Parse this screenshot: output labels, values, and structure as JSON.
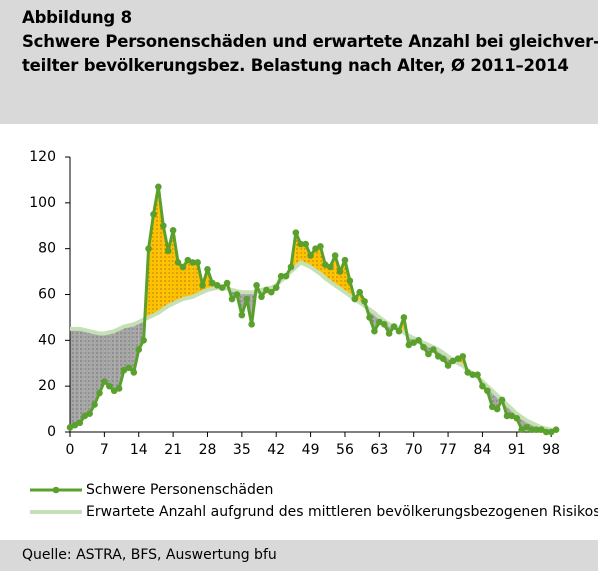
{
  "chart_data": {
    "type": "line",
    "figure_label": "Abbildung 8",
    "title": [
      "Schwere Personenschäden und erwartete Anzahl bei gleichver-",
      "teilter bevölkerungsbez. Belastung nach Alter, Ø 2011–2014"
    ],
    "source": "Quelle: ASTRA, BFS, Auswertung bfu",
    "x": [
      0,
      1,
      2,
      3,
      4,
      5,
      6,
      7,
      8,
      9,
      10,
      11,
      12,
      13,
      14,
      15,
      16,
      17,
      18,
      19,
      20,
      21,
      22,
      23,
      24,
      25,
      26,
      27,
      28,
      29,
      30,
      31,
      32,
      33,
      34,
      35,
      36,
      37,
      38,
      39,
      40,
      41,
      42,
      43,
      44,
      45,
      46,
      47,
      48,
      49,
      50,
      51,
      52,
      53,
      54,
      55,
      56,
      57,
      58,
      59,
      60,
      61,
      62,
      63,
      64,
      65,
      66,
      67,
      68,
      69,
      70,
      71,
      72,
      73,
      74,
      75,
      76,
      77,
      78,
      79,
      80,
      81,
      82,
      83,
      84,
      85,
      86,
      87,
      88,
      89,
      90,
      91,
      92,
      93,
      94,
      95,
      96,
      97,
      98,
      99
    ],
    "series": [
      {
        "name": "Schwere Personenschäden",
        "color": "#5aa02c",
        "values": [
          2,
          3,
          4,
          7,
          8,
          12,
          17,
          22,
          20,
          18,
          19,
          27,
          28,
          26,
          36,
          40,
          80,
          95,
          107,
          90,
          79,
          88,
          74,
          72,
          75,
          74,
          74,
          64,
          71,
          65,
          64,
          63,
          65,
          58,
          60,
          51,
          58,
          47,
          64,
          59,
          62,
          61,
          63,
          68,
          68,
          72,
          87,
          82,
          82,
          77,
          80,
          81,
          73,
          72,
          77,
          70,
          75,
          66,
          58,
          61,
          57,
          50,
          44,
          48,
          47,
          43,
          46,
          44,
          50,
          38,
          39,
          40,
          37,
          34,
          36,
          33,
          32,
          29,
          31,
          32,
          33,
          26,
          25,
          25,
          20,
          18,
          11,
          10,
          14,
          7,
          7,
          6,
          1,
          2,
          1,
          1,
          1,
          0,
          0,
          1
        ]
      },
      {
        "name": "Erwartete Anzahl aufgrund des mittleren bevölkerungsbezogenen Risikos",
        "color": "#c5e0b4",
        "values": [
          45,
          45,
          45,
          44.5,
          44,
          43.5,
          43,
          43,
          43.5,
          44,
          45,
          46,
          46.5,
          47,
          48,
          49,
          50,
          51,
          52,
          53.5,
          55,
          56,
          57,
          58,
          58.5,
          59,
          60,
          61,
          62,
          62.5,
          63,
          63,
          62.5,
          62,
          61.5,
          61,
          61,
          61,
          61,
          62,
          62.5,
          63,
          64,
          66,
          68,
          70,
          72,
          74,
          73,
          72,
          70.5,
          69,
          67,
          65.5,
          64,
          62.5,
          61,
          59.5,
          58,
          56.5,
          55,
          53.5,
          52,
          50,
          48.5,
          47,
          46,
          45,
          43.5,
          42,
          41,
          40,
          39,
          38,
          37,
          36,
          34.5,
          33,
          31.5,
          30,
          29,
          27,
          25.5,
          24,
          22,
          20,
          18,
          16,
          14,
          12,
          10,
          8,
          6.5,
          5,
          4,
          3,
          2,
          1.5,
          1,
          1
        ]
      }
    ],
    "xlim": [
      0,
      99
    ],
    "xticks": [
      0,
      7,
      14,
      21,
      28,
      35,
      42,
      49,
      56,
      63,
      70,
      77,
      84,
      91,
      98
    ],
    "ylim": [
      0,
      120
    ],
    "yticks": [
      0,
      20,
      40,
      60,
      80,
      100,
      120
    ],
    "above_color": "#ffc000",
    "below_color": "#a6a6a6"
  }
}
